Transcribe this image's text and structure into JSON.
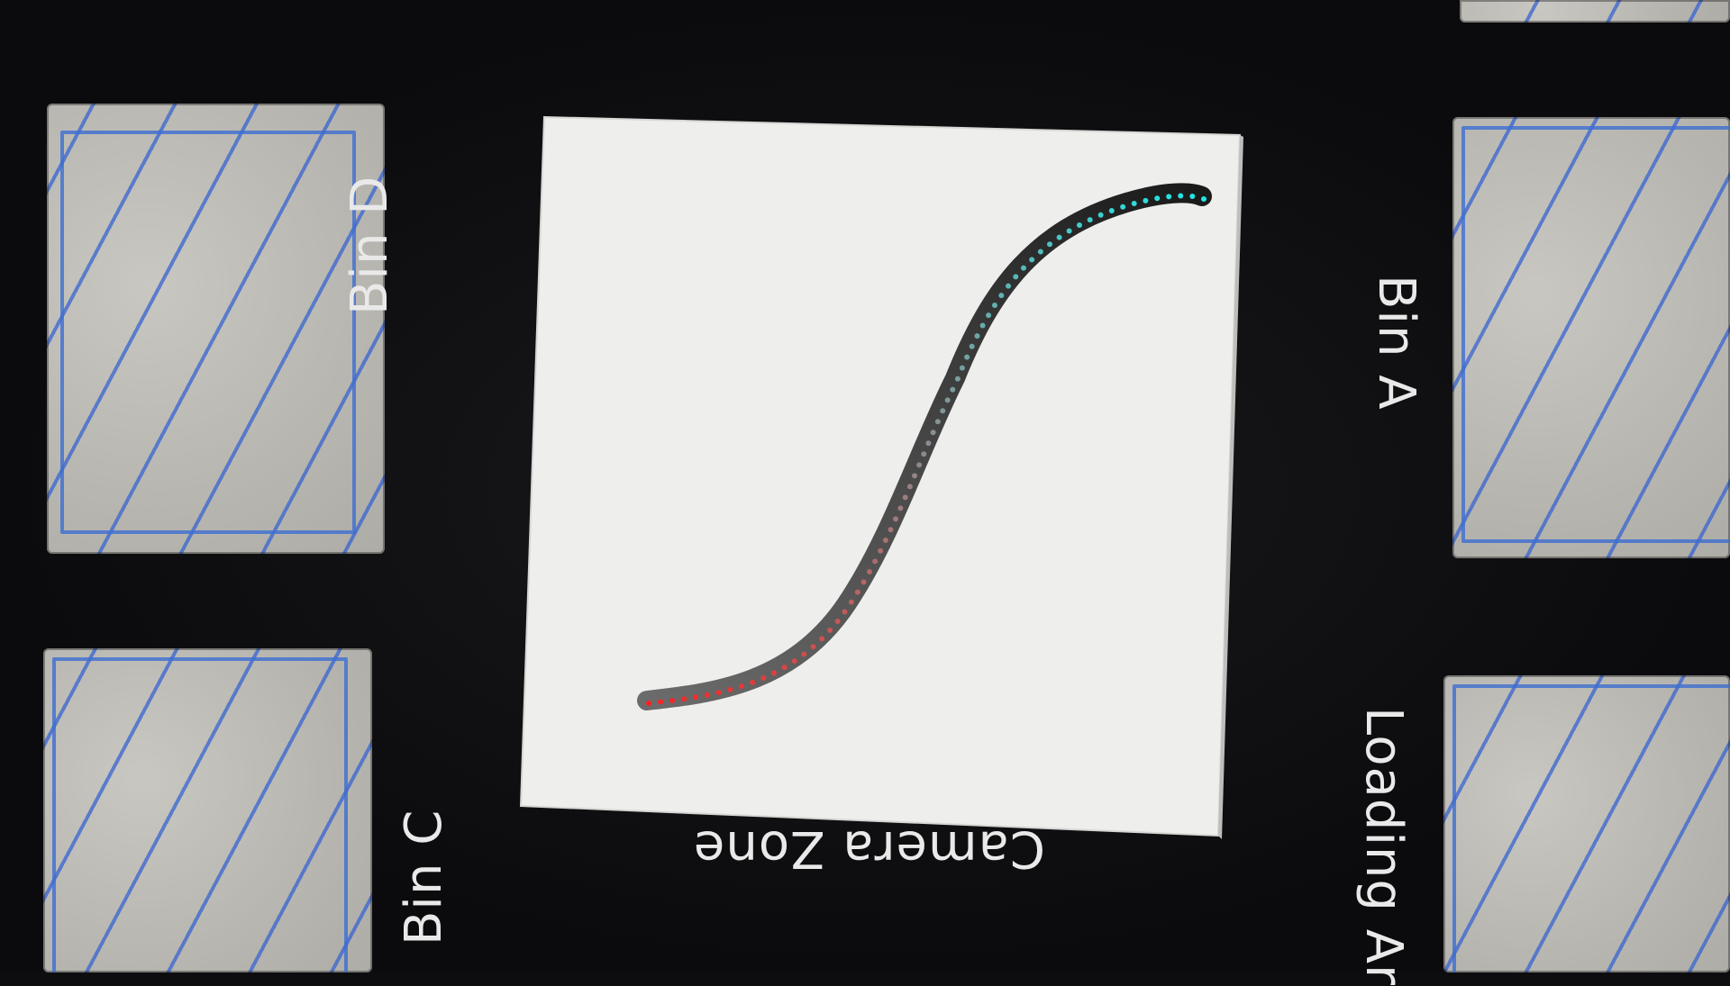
{
  "scene": {
    "labels": {
      "bin_a": "Bin A",
      "bin_b": "Bin D",
      "bin_c": "Bin C",
      "camera_zone": "Camera Zone",
      "loading": "Loading Ar"
    },
    "colors": {
      "board": "#0d0d0f",
      "paper": "#eeeeec",
      "stroke": "#2a2a2a",
      "start_marker": "#ff2020",
      "end_marker": "#20e8e8"
    }
  }
}
